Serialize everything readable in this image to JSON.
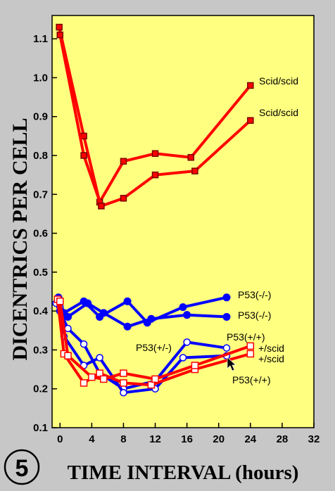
{
  "figure_number": "5",
  "chart_data": {
    "type": "line",
    "xlabel": "TIME INTERVAL (hours)",
    "ylabel": "DICENTRICS PER CELL",
    "xlim": [
      -1,
      32
    ],
    "ylim": [
      0.1,
      1.16
    ],
    "x_ticks": [
      0,
      4,
      8,
      12,
      16,
      20,
      24,
      28,
      32
    ],
    "y_ticks": [
      0.1,
      0.2,
      0.3,
      0.4,
      0.5,
      0.6,
      0.7,
      0.8,
      0.9,
      1.0,
      1.1
    ],
    "y_tick_labels": [
      "0.1",
      "0.2",
      "0.3",
      "0.4",
      "0.5",
      "0.6",
      "0.7",
      "0.8",
      "0.9",
      "1.0",
      "1.1"
    ],
    "grid": false,
    "background": "#ffff80",
    "series": [
      {
        "label": "Scid/scid",
        "color": "#ff0000",
        "marker": "filled-square",
        "x": [
          -0.1,
          3,
          5,
          8,
          12,
          16.5,
          24
        ],
        "y": [
          1.13,
          0.85,
          0.68,
          0.785,
          0.805,
          0.795,
          0.98
        ]
      },
      {
        "label": "Scid/scid",
        "color": "#ff0000",
        "marker": "filled-square",
        "x": [
          0,
          3,
          5.2,
          8,
          12,
          17,
          24
        ],
        "y": [
          1.11,
          0.8,
          0.67,
          0.69,
          0.75,
          0.76,
          0.89
        ]
      },
      {
        "label": "P53(-/-)",
        "color": "#0000ff",
        "marker": "filled-circle",
        "x": [
          -0.2,
          0.5,
          3,
          5,
          8.5,
          11,
          15.5,
          21
        ],
        "y": [
          0.435,
          0.395,
          0.425,
          0.385,
          0.425,
          0.37,
          0.41,
          0.435
        ]
      },
      {
        "label": "P53(-/-)",
        "color": "#0000ff",
        "marker": "filled-circle",
        "x": [
          0,
          1,
          3.5,
          5.5,
          8.5,
          11.5,
          16,
          21
        ],
        "y": [
          0.4,
          0.385,
          0.42,
          0.395,
          0.36,
          0.38,
          0.39,
          0.385
        ]
      },
      {
        "label": "P53(+/+)",
        "color": "#0000ff",
        "marker": "open-circle",
        "x": [
          -0.5,
          1,
          3,
          5,
          8,
          12,
          16,
          21
        ],
        "y": [
          0.42,
          0.355,
          0.315,
          0.24,
          0.2,
          0.22,
          0.32,
          0.305
        ]
      },
      {
        "label": "P53(+/-)",
        "color": "#0000ff",
        "marker": "open-circle",
        "x": [
          0,
          0.5,
          3,
          5,
          8,
          12,
          15.5,
          21
        ],
        "y": [
          0.41,
          0.335,
          0.26,
          0.28,
          0.19,
          0.2,
          0.28,
          0.285
        ]
      },
      {
        "label": "+/scid",
        "color": "#ff0000",
        "marker": "open-square",
        "x": [
          -0.3,
          0.5,
          3,
          5,
          8,
          11.5,
          17,
          24
        ],
        "y": [
          0.43,
          0.29,
          0.215,
          0.24,
          0.215,
          0.21,
          0.25,
          0.29
        ]
      },
      {
        "label": "+/scid",
        "color": "#ff0000",
        "marker": "open-square",
        "x": [
          0,
          1,
          4,
          5.5,
          8,
          12,
          17,
          24
        ],
        "y": [
          0.425,
          0.285,
          0.23,
          0.225,
          0.24,
          0.225,
          0.26,
          0.31
        ]
      }
    ],
    "annotations": [
      {
        "text": "Scid/scid"
      },
      {
        "text": "Scid/scid"
      },
      {
        "text": "P53(-/-)"
      },
      {
        "text": "P53(-/-)"
      },
      {
        "text": "P53(+/+)"
      },
      {
        "text": "P53(+/-)"
      },
      {
        "text": "+/scid"
      },
      {
        "text": "+/scid"
      },
      {
        "text": "P53(+/+)"
      }
    ]
  }
}
